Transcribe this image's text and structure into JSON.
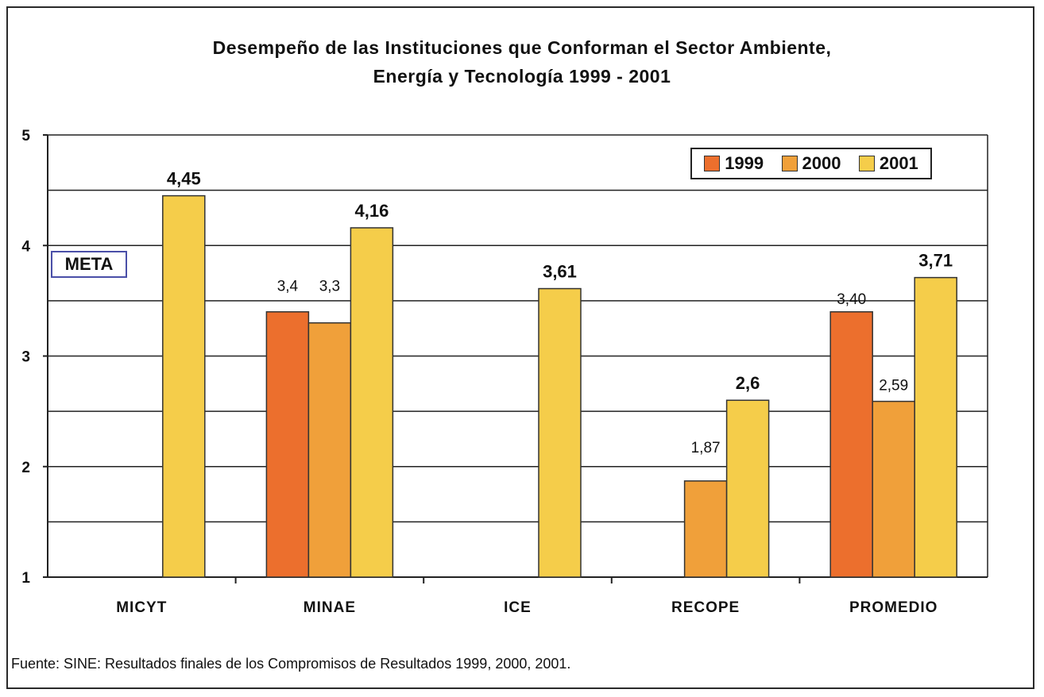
{
  "chart_data": {
    "type": "bar",
    "title_line1": "Desempeño de las Instituciones que Conforman el Sector Ambiente,",
    "title_line2": "Energía y Tecnología 1999 - 2001",
    "categories": [
      "MICYT",
      "MINAE",
      "ICE",
      "RECOPE",
      "PROMEDIO"
    ],
    "series": [
      {
        "name": "1999",
        "color": "#EC6F2D",
        "values": [
          null,
          3.4,
          null,
          null,
          3.4
        ],
        "labels": [
          null,
          "3,4",
          null,
          null,
          "3,40"
        ],
        "bold": false
      },
      {
        "name": "2000",
        "color": "#F0A03A",
        "values": [
          null,
          3.3,
          null,
          1.87,
          2.59
        ],
        "labels": [
          null,
          "3,3",
          null,
          "1,87",
          "2,59"
        ],
        "bold": false
      },
      {
        "name": "2001",
        "color": "#F5CD4A",
        "values": [
          4.45,
          4.16,
          3.61,
          2.6,
          3.71
        ],
        "labels": [
          "4,45",
          "4,16",
          "3,61",
          "2,6",
          "3,71"
        ],
        "bold": true
      }
    ],
    "ylim": [
      1,
      5
    ],
    "yticks": [
      1,
      2,
      3,
      4,
      5
    ],
    "gridlines": [
      1.5,
      2,
      2.5,
      3,
      3.5,
      4,
      4.5,
      5
    ],
    "legend_position": "top-right",
    "annotation": "META",
    "xlabel": "",
    "ylabel": ""
  },
  "source": "Fuente: SINE: Resultados finales de los Compromisos de Resultados 1999, 2000, 2001."
}
